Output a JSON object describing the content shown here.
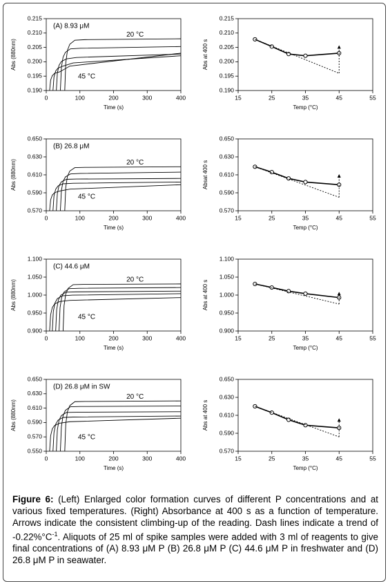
{
  "chart_data": [
    {
      "type": "line",
      "title": "(A) 8.93 μM",
      "x_label": "Time (s)",
      "y_label": "Abs (880nm)",
      "xlim": [
        0,
        400
      ],
      "xticks": [
        0,
        100,
        200,
        300,
        400
      ],
      "ylim": [
        0.19,
        0.215
      ],
      "yticks": [
        {
          "value": 0.19,
          "label": "0.190"
        },
        0.195,
        {
          "value": 0.2,
          "label": "0.200"
        },
        0.205,
        {
          "value": 0.21,
          "label": "0.210"
        },
        0.215
      ],
      "annotations": [
        "20 °C",
        "45 °C"
      ],
      "series": [
        {
          "color": "#000000",
          "x": [
            55,
            58,
            63,
            70,
            85,
            115,
            400
          ],
          "values": [
            0.19,
            0.1996,
            0.204,
            0.2061,
            0.2075,
            0.2077,
            0.208
          ]
        },
        {
          "color": "#000000",
          "x": [
            42,
            45,
            50,
            57,
            72,
            102,
            400
          ],
          "values": [
            0.19,
            0.198,
            0.2016,
            0.2033,
            0.2045,
            0.2047,
            0.2053
          ]
        },
        {
          "color": "#000000",
          "x": [
            30,
            33,
            38,
            45,
            60,
            90,
            400
          ],
          "values": [
            0.19,
            0.1961,
            0.1988,
            0.2001,
            0.201,
            0.2015,
            0.2027
          ]
        },
        {
          "color": "#000000",
          "x": [
            20,
            23,
            28,
            35,
            50,
            80,
            400
          ],
          "values": [
            0.19,
            0.1947,
            0.1968,
            0.1978,
            0.1985,
            0.1996,
            0.2021
          ]
        },
        {
          "color": "#000000",
          "x": [
            10,
            13,
            18,
            25,
            40,
            70,
            400
          ],
          "values": [
            0.19,
            0.1936,
            0.1952,
            0.196,
            0.1965,
            0.1985,
            0.203
          ]
        }
      ]
    },
    {
      "type": "line",
      "x_label": "Temp (°C)",
      "y_label": "Abs at 400 s",
      "xlim": [
        15,
        55
      ],
      "xticks": [
        15,
        25,
        35,
        45,
        55
      ],
      "ylim": [
        0.19,
        0.215
      ],
      "yticks": [
        {
          "value": 0.19,
          "label": "0.190"
        },
        0.195,
        {
          "value": 0.2,
          "label": "0.200"
        },
        0.205,
        {
          "value": 0.21,
          "label": "0.210"
        },
        0.215
      ],
      "series": [
        {
          "color": "#000000",
          "marker": "circle",
          "x": [
            20,
            25,
            30,
            35,
            45
          ],
          "values": [
            0.2078,
            0.2053,
            0.2027,
            0.2021,
            0.203
          ]
        },
        {
          "color": "#000000",
          "dashed": true,
          "x": [
            20,
            45
          ],
          "values": [
            0.2078,
            0.196
          ]
        }
      ],
      "arrows": [
        {
          "x": 45,
          "values": [
            0.196,
            0.2055
          ]
        }
      ]
    },
    {
      "type": "line",
      "title": "(B) 26.8 μM",
      "x_label": "Time (s)",
      "y_label": "Abs (880nm)",
      "xlim": [
        0,
        400
      ],
      "xticks": [
        0,
        100,
        200,
        300,
        400
      ],
      "ylim": [
        0.57,
        0.65
      ],
      "yticks": [
        {
          "value": 0.57,
          "label": "0.570"
        },
        {
          "value": 0.59,
          "label": "0.590"
        },
        {
          "value": 0.61,
          "label": "0.610"
        },
        {
          "value": 0.63,
          "label": "0.630"
        },
        {
          "value": 0.65,
          "label": "0.650"
        }
      ],
      "annotations": [
        "20 °C",
        "45 °C"
      ],
      "series": [
        {
          "color": "#000000",
          "x": [
            55,
            58,
            63,
            70,
            85,
            115,
            400
          ],
          "values": [
            0.57,
            0.5964,
            0.6084,
            0.6142,
            0.618,
            0.6183,
            0.619
          ]
        },
        {
          "color": "#000000",
          "x": [
            42,
            45,
            50,
            57,
            72,
            102,
            400
          ],
          "values": [
            0.57,
            0.5926,
            0.6028,
            0.6077,
            0.611,
            0.6116,
            0.613
          ]
        },
        {
          "color": "#000000",
          "x": [
            30,
            33,
            38,
            45,
            60,
            90,
            400
          ],
          "values": [
            0.57,
            0.5893,
            0.598,
            0.6022,
            0.605,
            0.6053,
            0.606
          ]
        },
        {
          "color": "#000000",
          "x": [
            20,
            23,
            28,
            35,
            50,
            80,
            400
          ],
          "values": [
            0.57,
            0.5865,
            0.594,
            0.5976,
            0.6,
            0.6006,
            0.602
          ]
        },
        {
          "color": "#000000",
          "x": [
            10,
            13,
            18,
            25,
            40,
            70,
            400
          ],
          "values": [
            0.57,
            0.5821,
            0.5876,
            0.5902,
            0.592,
            0.5941,
            0.599
          ]
        }
      ]
    },
    {
      "type": "line",
      "x_label": "Temp (°C)",
      "y_label": "Absat 400 s",
      "xlim": [
        15,
        55
      ],
      "xticks": [
        15,
        25,
        35,
        45,
        55
      ],
      "ylim": [
        0.57,
        0.65
      ],
      "yticks": [
        {
          "value": 0.57,
          "label": "0.570"
        },
        {
          "value": 0.59,
          "label": "0.590"
        },
        {
          "value": 0.61,
          "label": "0.610"
        },
        {
          "value": 0.63,
          "label": "0.630"
        },
        {
          "value": 0.65,
          "label": "0.650"
        }
      ],
      "series": [
        {
          "color": "#000000",
          "marker": "circle",
          "x": [
            20,
            25,
            30,
            35,
            45
          ],
          "values": [
            0.619,
            0.613,
            0.606,
            0.602,
            0.599
          ]
        },
        {
          "color": "#000000",
          "dashed": true,
          "x": [
            20,
            45
          ],
          "values": [
            0.619,
            0.585
          ]
        }
      ],
      "arrows": [
        {
          "x": 45,
          "values": [
            0.585,
            0.61
          ]
        }
      ]
    },
    {
      "type": "line",
      "title": "(C)  44.6 μM",
      "x_label": "Time (s)",
      "y_label": "Abs (880nm)",
      "xlim": [
        0,
        400
      ],
      "xticks": [
        0,
        100,
        200,
        300,
        400
      ],
      "ylim": [
        0.9,
        1.1
      ],
      "yticks": [
        {
          "value": 0.9,
          "label": "0.900"
        },
        {
          "value": 0.95,
          "label": "0.950"
        },
        {
          "value": 1,
          "label": "1.000"
        },
        {
          "value": 1.05,
          "label": "1.050"
        },
        {
          "value": 1.1,
          "label": "1.100"
        }
      ],
      "annotations": [
        "20 °C",
        "45 °C"
      ],
      "series": [
        {
          "color": "#000000",
          "x": [
            50,
            53,
            58,
            65,
            80,
            110,
            400
          ],
          "values": [
            0.9,
            0.971,
            1.0032,
            1.0187,
            1.029,
            1.0296,
            1.031
          ]
        },
        {
          "color": "#000000",
          "x": [
            38,
            41,
            46,
            53,
            68,
            98,
            400
          ],
          "values": [
            0.9,
            0.9649,
            0.9944,
            1.0086,
            1.018,
            1.0189,
            1.021
          ]
        },
        {
          "color": "#000000",
          "x": [
            28,
            31,
            36,
            43,
            58,
            88,
            400
          ],
          "values": [
            0.9,
            0.9594,
            0.9864,
            0.9994,
            1.008,
            1.0089,
            1.011
          ]
        },
        {
          "color": "#000000",
          "x": [
            18,
            21,
            26,
            33,
            48,
            78,
            400
          ],
          "values": [
            0.9,
            0.9539,
            0.9784,
            0.9902,
            0.998,
            0.9998,
            1.004
          ]
        },
        {
          "color": "#000000",
          "x": [
            10,
            13,
            18,
            25,
            40,
            70,
            400
          ],
          "values": [
            0.9,
            0.9451,
            0.9656,
            0.9754,
            0.982,
            0.9853,
            0.993
          ]
        }
      ]
    },
    {
      "type": "line",
      "x_label": "Temp (°C)",
      "y_label": "Abs at 400 s",
      "xlim": [
        15,
        55
      ],
      "xticks": [
        15,
        25,
        35,
        45,
        55
      ],
      "ylim": [
        0.9,
        1.1
      ],
      "yticks": [
        {
          "value": 0.9,
          "label": "0.900"
        },
        {
          "value": 0.95,
          "label": "0.950"
        },
        {
          "value": 1,
          "label": "1.000"
        },
        {
          "value": 1.05,
          "label": "1.050"
        },
        {
          "value": 1.1,
          "label": "1.100"
        }
      ],
      "series": [
        {
          "color": "#000000",
          "marker": "circle",
          "x": [
            20,
            25,
            30,
            35,
            45
          ],
          "values": [
            1.031,
            1.021,
            1.011,
            1.004,
            0.993
          ]
        },
        {
          "color": "#000000",
          "dashed": true,
          "x": [
            20,
            45
          ],
          "values": [
            1.031,
            0.975
          ]
        }
      ],
      "arrows": [
        {
          "x": 45,
          "values": [
            0.975,
            1.007
          ]
        }
      ]
    },
    {
      "type": "line",
      "title": "(D) 26.8 μM in SW",
      "x_label": "Time (s)",
      "y_label": "Abs (880nm)",
      "xlim": [
        0,
        400
      ],
      "xticks": [
        0,
        100,
        200,
        300,
        400
      ],
      "ylim": [
        0.55,
        0.65
      ],
      "yticks": [
        {
          "value": 0.55,
          "label": "0.550"
        },
        {
          "value": 0.57,
          "label": "0.570"
        },
        {
          "value": 0.59,
          "label": "0.590"
        },
        {
          "value": 0.61,
          "label": "0.610"
        },
        {
          "value": 0.63,
          "label": "0.630"
        },
        {
          "value": 0.65,
          "label": "0.650"
        }
      ],
      "annotations": [
        "20 °C",
        "45 °C"
      ],
      "series": [
        {
          "color": "#000000",
          "x": [
            55,
            58,
            63,
            70,
            85,
            115,
            400
          ],
          "values": [
            0.55,
            0.588,
            0.6052,
            0.6135,
            0.619,
            0.6193,
            0.62
          ]
        },
        {
          "color": "#000000",
          "x": [
            42,
            45,
            50,
            57,
            72,
            102,
            400
          ],
          "values": [
            0.55,
            0.5841,
            0.5996,
            0.607,
            0.612,
            0.6123,
            0.613
          ]
        },
        {
          "color": "#000000",
          "x": [
            30,
            33,
            38,
            45,
            60,
            90,
            400
          ],
          "values": [
            0.55,
            0.5797,
            0.5932,
            0.5997,
            0.604,
            0.6043,
            0.605
          ]
        },
        {
          "color": "#000000",
          "x": [
            20,
            23,
            28,
            35,
            50,
            80,
            400
          ],
          "values": [
            0.55,
            0.5759,
            0.5876,
            0.5932,
            0.597,
            0.5976,
            0.599
          ]
        },
        {
          "color": "#000000",
          "x": [
            10,
            13,
            18,
            25,
            40,
            70,
            400
          ],
          "values": [
            0.55,
            0.5715,
            0.5812,
            0.5859,
            0.589,
            0.5911,
            0.596
          ]
        }
      ]
    },
    {
      "type": "line",
      "x_label": "Temp (°C)",
      "y_label": "Abs at 400 s",
      "xlim": [
        15,
        55
      ],
      "xticks": [
        15,
        25,
        35,
        45,
        55
      ],
      "ylim": [
        0.57,
        0.65
      ],
      "yticks": [
        {
          "value": 0.57,
          "label": "0.570"
        },
        {
          "value": 0.59,
          "label": "0.590"
        },
        {
          "value": 0.61,
          "label": "0.610"
        },
        {
          "value": 0.63,
          "label": "0.630"
        },
        {
          "value": 0.65,
          "label": "0.650"
        }
      ],
      "series": [
        {
          "color": "#000000",
          "marker": "circle",
          "x": [
            20,
            25,
            30,
            35,
            45
          ],
          "values": [
            0.62,
            0.613,
            0.605,
            0.599,
            0.596
          ]
        },
        {
          "color": "#000000",
          "dashed": true,
          "x": [
            20,
            45
          ],
          "values": [
            0.62,
            0.586
          ]
        }
      ],
      "arrows": [
        {
          "x": 45,
          "values": [
            0.586,
            0.606
          ]
        }
      ]
    }
  ],
  "caption": {
    "label": "Figure 6:",
    "text_1": " (Left) Enlarged color formation curves of different P concentrations and at various fixed temperatures. (Right) Absorbance at 400 s as a function of temperature. Arrows indicate the consistent climbing-up of the reading. Dash lines indicate a trend of -0.22%°C",
    "superscript": "-1",
    "text_2": ". Aliquots of 25 ml of spike samples were added with 3 ml of reagents to give final concentrations of (A) 8.93 μM P (B) 26.8 μM P (C) 44.6 μM P in freshwater and (D) 26.8 μM P in seawater."
  }
}
